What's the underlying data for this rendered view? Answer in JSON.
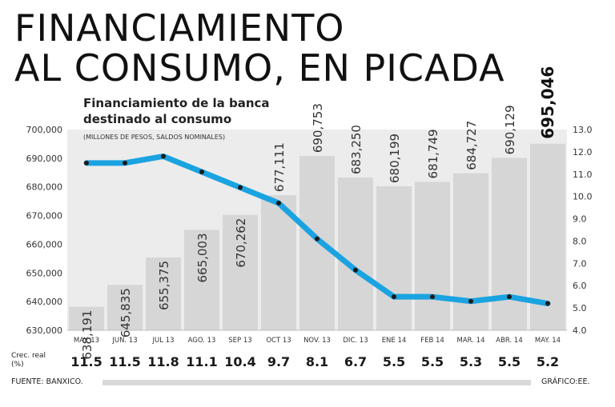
{
  "headline": {
    "line1": "FINANCIAMIENTO",
    "line2": "AL CONSUMO, EN PICADA"
  },
  "chart_data": {
    "type": "bar+line",
    "title": "Financiamiento de la banca destinado al consumo",
    "title_line1": "Financiamiento de la banca",
    "title_line2": "destinado al consumo",
    "subtitle": "(MILLONES DE PESOS, SALDOS NOMINALES)",
    "categories": [
      "MAY. 13",
      "JUN. 13",
      "JUL 13",
      "AGO. 13",
      "SEP 13",
      "OCT 13",
      "NOV. 13",
      "DIC. 13",
      "ENE 14",
      "FEB 14",
      "MAR. 14",
      "ABR. 14",
      "MAY. 14"
    ],
    "bar_values": [
      638191,
      645835,
      655375,
      665003,
      670262,
      677111,
      690753,
      683250,
      680199,
      681749,
      684727,
      690129,
      695046
    ],
    "bar_labels": [
      "638,191",
      "645,835",
      "655,375",
      "665,003",
      "670,262",
      "677,111",
      "690,753",
      "683,250",
      "680,199",
      "681,749",
      "684,727",
      "690,129",
      "695,046"
    ],
    "line_values": [
      11.5,
      11.5,
      11.8,
      11.1,
      10.4,
      9.7,
      8.1,
      6.7,
      5.5,
      5.5,
      5.3,
      5.5,
      5.2
    ],
    "line_labels": [
      "11.5",
      "11.5",
      "11.8",
      "11.1",
      "10.4",
      "9.7",
      "8.1",
      "6.7",
      "5.5",
      "5.5",
      "5.3",
      "5.5",
      "5.2"
    ],
    "left_axis": {
      "range": [
        630000,
        700000
      ],
      "ticks": [
        630000,
        640000,
        650000,
        660000,
        670000,
        680000,
        690000,
        700000
      ],
      "tick_labels": [
        "630,000",
        "640,000",
        "650,000",
        "660,000",
        "670,000",
        "680,000",
        "690,000",
        "700,000"
      ]
    },
    "right_axis": {
      "range": [
        4.0,
        13.0
      ],
      "ticks": [
        4,
        5,
        6,
        7,
        8,
        9,
        10,
        11,
        12,
        13
      ],
      "tick_labels": [
        "4.0",
        "5.0",
        "6.0",
        "7.0",
        "8.0",
        "9.0",
        "10.0",
        "11.0",
        "12.0",
        "13.0"
      ]
    },
    "row_label_line1": "Crec. real",
    "row_label_line2": "(%)",
    "colors": {
      "bar": "#d6d6d6",
      "plot_bg": "#ececec",
      "line": "#1aa3e0",
      "marker": "#1a1a1a"
    }
  },
  "footer": {
    "source": "FUENTE: BANXICO.",
    "credit": "GRÁFICO:EE."
  }
}
